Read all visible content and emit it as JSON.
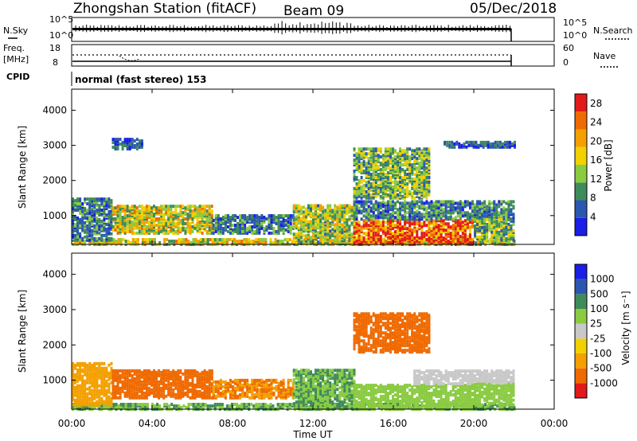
{
  "header": {
    "station": "Zhongshan Station (fitACF)",
    "beam": "Beam 09",
    "date": "05/Dec/2018"
  },
  "noise_panel": {
    "left_label": "N.Sky",
    "right_label": "N.Search",
    "left_ticks": [
      "10^5",
      "10^0"
    ],
    "right_ticks": [
      "10^5",
      "10^0"
    ]
  },
  "freq_panel": {
    "left_label_1": "Freq.",
    "left_label_2": "[MHz]",
    "right_label": "Nave",
    "left_ticks": [
      "18",
      "8"
    ],
    "right_ticks": [
      "60",
      "0"
    ]
  },
  "cpid": {
    "label": "CPID",
    "mode": "normal (fast stereo) 153"
  },
  "time_axis": {
    "label": "Time UT",
    "ticks": [
      "00:00",
      "04:00",
      "08:00",
      "12:00",
      "16:00",
      "20:00",
      "00:00"
    ]
  },
  "colors": {
    "power_scale": [
      "#1a1ee6",
      "#2b57b0",
      "#3f8b5a",
      "#8acb42",
      "#f1d100",
      "#f3a000",
      "#ef6a00",
      "#e21a1a"
    ],
    "velocity_scale": [
      "#e21a1a",
      "#ef6a00",
      "#f3a000",
      "#f1d100",
      "#c8c8c8",
      "#8acb42",
      "#3f8b5a",
      "#2b57b0",
      "#1a1ee6"
    ]
  },
  "chart_data": [
    {
      "type": "heatmap",
      "panel": "power",
      "ylabel": "Slant Range [km]",
      "xlabel": "Time UT",
      "xlim": [
        0,
        24
      ],
      "ylim": [
        180,
        4600
      ],
      "yticks": [
        1000,
        2000,
        3000,
        4000
      ],
      "colorbar": {
        "label": "Power [dB]",
        "ticks": [
          "4",
          "8",
          "12",
          "16",
          "20",
          "24",
          "28"
        ],
        "range": [
          0,
          30
        ]
      },
      "regions": [
        {
          "t": [
            0.0,
            22.0
          ],
          "r": [
            180,
            320
          ],
          "value": 16
        },
        {
          "t": [
            0.0,
            2.0
          ],
          "r": [
            300,
            1500
          ],
          "value": 8
        },
        {
          "t": [
            2.0,
            7.0
          ],
          "r": [
            500,
            1300
          ],
          "value": 16
        },
        {
          "t": [
            7.0,
            11.0
          ],
          "r": [
            500,
            1000
          ],
          "value": 8
        },
        {
          "t": [
            11.0,
            14.0
          ],
          "r": [
            200,
            1300
          ],
          "value": 14
        },
        {
          "t": [
            14.0,
            20.0
          ],
          "r": [
            180,
            900
          ],
          "value": 26
        },
        {
          "t": [
            14.0,
            17.8
          ],
          "r": [
            1500,
            2900
          ],
          "value": 12
        },
        {
          "t": [
            14.0,
            22.0
          ],
          "r": [
            900,
            1400
          ],
          "value": 8
        },
        {
          "t": [
            20.0,
            22.0
          ],
          "r": [
            300,
            900
          ],
          "value": 12
        },
        {
          "t": [
            2.0,
            3.5
          ],
          "r": [
            2900,
            3200
          ],
          "value": 6
        },
        {
          "t": [
            18.5,
            22.0
          ],
          "r": [
            2950,
            3100
          ],
          "value": 6
        }
      ]
    },
    {
      "type": "heatmap",
      "panel": "velocity",
      "ylabel": "Slant Range [km]",
      "xlabel": "Time UT",
      "xlim": [
        0,
        24
      ],
      "ylim": [
        180,
        4600
      ],
      "yticks": [
        1000,
        2000,
        3000,
        4000
      ],
      "colorbar": {
        "label": "Velocity [m s⁻¹]",
        "ticks": [
          "1000",
          "500",
          "100",
          "25",
          "-25",
          "-100",
          "-500",
          "-1000"
        ],
        "range": [
          -1000,
          1000
        ]
      },
      "regions": [
        {
          "t": [
            0.0,
            22.0
          ],
          "r": [
            180,
            320
          ],
          "value": 100
        },
        {
          "t": [
            0.0,
            2.0
          ],
          "r": [
            300,
            1500
          ],
          "value": -50
        },
        {
          "t": [
            2.0,
            7.0
          ],
          "r": [
            500,
            1300
          ],
          "value": -300
        },
        {
          "t": [
            7.0,
            11.0
          ],
          "r": [
            500,
            1000
          ],
          "value": -100
        },
        {
          "t": [
            11.0,
            14.0
          ],
          "r": [
            200,
            1300
          ],
          "value": 100
        },
        {
          "t": [
            14.0,
            20.0
          ],
          "r": [
            180,
            900
          ],
          "value": 50
        },
        {
          "t": [
            14.0,
            17.8
          ],
          "r": [
            1800,
            2900
          ],
          "value": -300
        },
        {
          "t": [
            17.0,
            22.0
          ],
          "r": [
            900,
            1300
          ],
          "value": 0
        },
        {
          "t": [
            20.0,
            22.0
          ],
          "r": [
            300,
            900
          ],
          "value": 50
        }
      ]
    }
  ]
}
